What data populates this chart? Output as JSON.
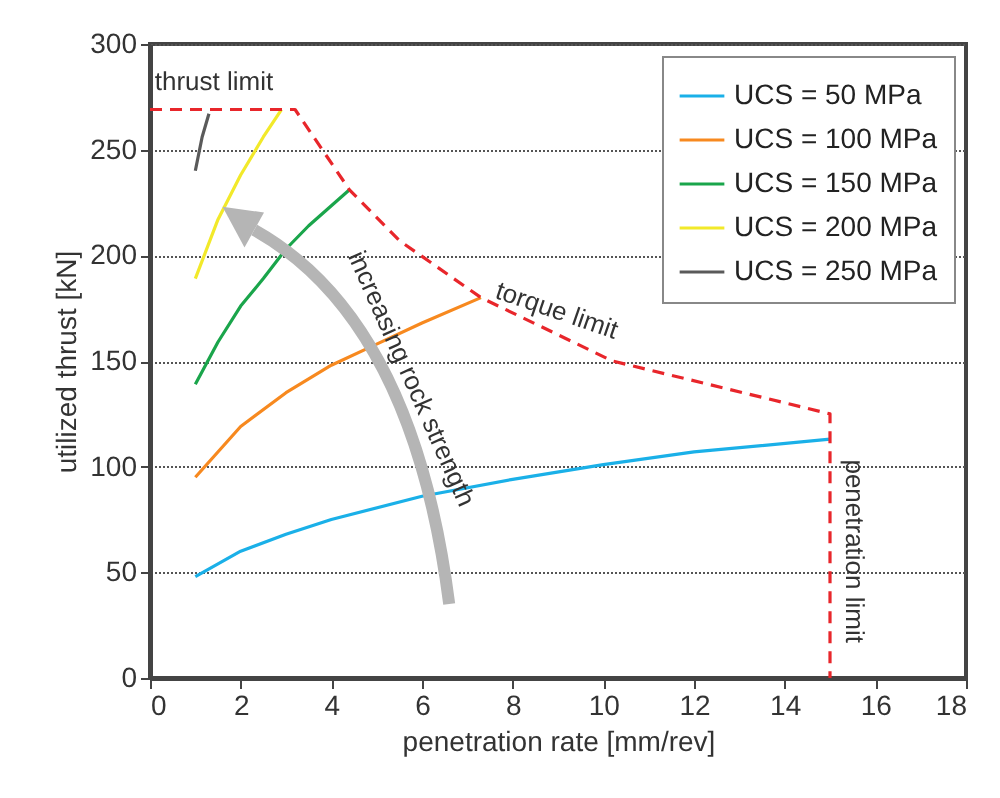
{
  "chart_data": {
    "type": "line",
    "xlabel": "penetration rate [mm/rev]",
    "ylabel": "utilized thrust [kN]",
    "xlim": [
      0,
      18
    ],
    "xticks": [
      0,
      2,
      4,
      6,
      8,
      10,
      12,
      14,
      16,
      18
    ],
    "ylim": [
      0,
      300
    ],
    "yticks": [
      0,
      50,
      100,
      150,
      200,
      250,
      300
    ],
    "grid": "y",
    "legend": "top right",
    "series": [
      {
        "name": "UCS = 50 MPa",
        "color": "#1ab0e8",
        "x": [
          1,
          2,
          3,
          4,
          6,
          8,
          10,
          12,
          15
        ],
        "values": [
          48,
          60,
          68,
          75,
          86,
          94,
          101,
          107,
          113
        ]
      },
      {
        "name": "UCS = 100 MPa",
        "color": "#f7891f",
        "x": [
          1,
          2,
          3,
          4,
          5,
          6,
          7.3
        ],
        "values": [
          95,
          119,
          135,
          148,
          158,
          168,
          180
        ]
      },
      {
        "name": "UCS = 150 MPa",
        "color": "#1aa54b",
        "x": [
          1,
          1.5,
          2,
          2.5,
          3,
          3.5,
          4.4
        ],
        "values": [
          139,
          159,
          176,
          189,
          203,
          214,
          231
        ]
      },
      {
        "name": "UCS = 200 MPa",
        "color": "#f2e92a",
        "x": [
          1,
          1.5,
          2,
          2.5,
          2.9
        ],
        "values": [
          189,
          217,
          238,
          256,
          269
        ]
      },
      {
        "name": "UCS = 250 MPa",
        "color": "#5a5a5a",
        "x": [
          1,
          1.15,
          1.3
        ],
        "values": [
          240,
          256,
          267
        ]
      },
      {
        "color": "#e8262b",
        "line_style": "dashed",
        "x": [
          0,
          3.2,
          4.4,
          5.5,
          7.3,
          10.2,
          15,
          15
        ],
        "values": [
          269,
          269,
          231,
          207,
          180,
          150,
          125,
          0
        ]
      }
    ],
    "annotations": [
      {
        "text": "thrust limit",
        "x": 1.5,
        "y": 269
      },
      {
        "text": "torque limit",
        "x": 8.8,
        "y": 163
      },
      {
        "text": "penetration limit",
        "x": 15,
        "y": 60
      },
      "increasing rock strength"
    ]
  }
}
